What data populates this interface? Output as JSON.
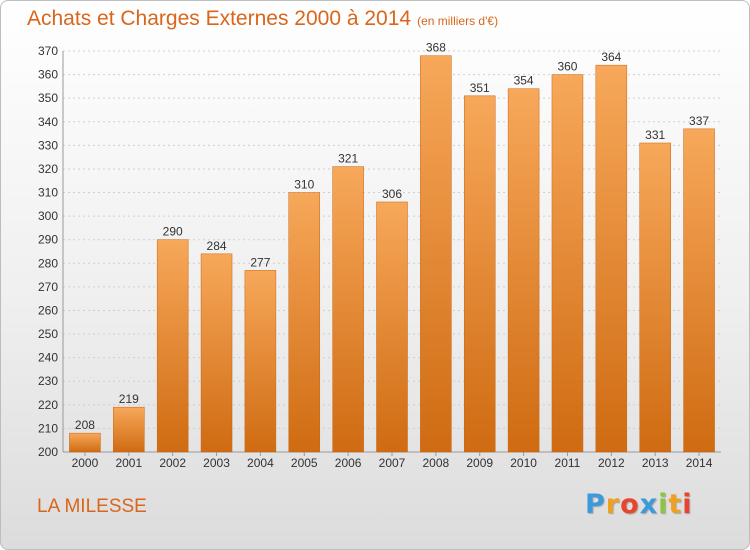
{
  "title": "Achats et Charges Externes 2000 à 2014",
  "subtitle": "(en milliers d'€)",
  "commune": "LA MILESSE",
  "brand": {
    "letters": [
      "P",
      "r",
      "o",
      "x",
      "i",
      "t",
      "i"
    ],
    "colors": [
      "#3b9ad9",
      "#f0a020",
      "#e8452c",
      "#3b9ad9",
      "#8cc63f",
      "#f0a020",
      "#e8452c"
    ]
  },
  "colors": {
    "bar_light": "#f7a85a",
    "bar_dark": "#cf6b12",
    "title": "#d9661a",
    "grid": "#cfcfcf"
  },
  "chart_data": {
    "type": "bar",
    "title": "Achats et Charges Externes 2000 à 2014",
    "subtitle": "(en milliers d'€)",
    "categories": [
      "2000",
      "2001",
      "2002",
      "2003",
      "2004",
      "2005",
      "2006",
      "2007",
      "2008",
      "2009",
      "2010",
      "2011",
      "2012",
      "2013",
      "2014"
    ],
    "values": [
      208,
      219,
      290,
      284,
      277,
      310,
      321,
      306,
      368,
      351,
      354,
      360,
      364,
      331,
      337
    ],
    "ylim": [
      200,
      370
    ],
    "yticks": [
      200,
      210,
      220,
      230,
      240,
      250,
      260,
      270,
      280,
      290,
      300,
      310,
      320,
      330,
      340,
      350,
      360,
      370
    ],
    "grid": true,
    "data_labels": true
  }
}
